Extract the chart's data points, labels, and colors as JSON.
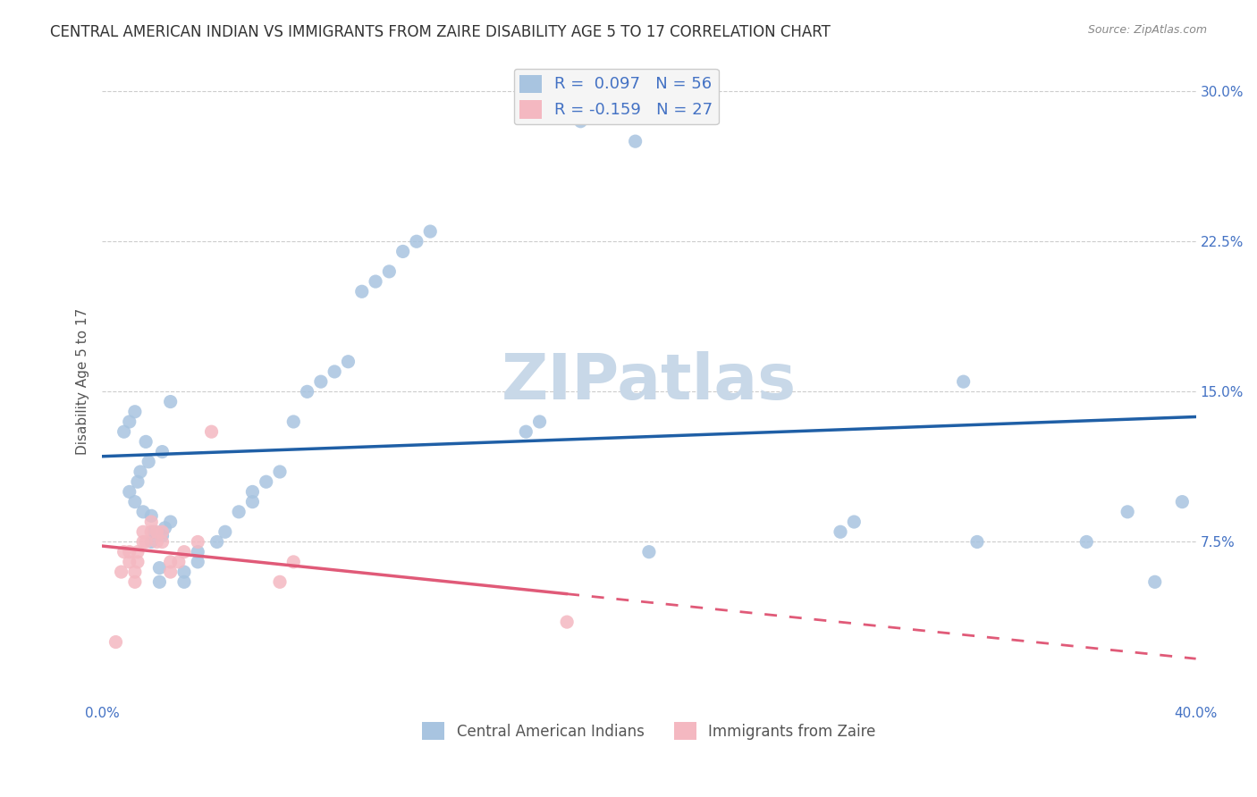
{
  "title": "CENTRAL AMERICAN INDIAN VS IMMIGRANTS FROM ZAIRE DISABILITY AGE 5 TO 17 CORRELATION CHART",
  "source": "Source: ZipAtlas.com",
  "xlabel_bottom": "",
  "ylabel": "Disability Age 5 to 17",
  "xmin": 0.0,
  "xmax": 0.4,
  "ymin": -0.005,
  "ymax": 0.315,
  "xticks": [
    0.0,
    0.1,
    0.2,
    0.3,
    0.4
  ],
  "xticklabels": [
    "0.0%",
    "",
    "",
    "",
    "40.0%"
  ],
  "yticks": [
    0.075,
    0.15,
    0.225,
    0.3
  ],
  "yticklabels": [
    "7.5%",
    "15.0%",
    "22.5%",
    "30.0%"
  ],
  "R_blue": 0.097,
  "N_blue": 56,
  "R_pink": -0.159,
  "N_pink": 27,
  "blue_color": "#a8c4e0",
  "blue_line_color": "#1f5fa6",
  "pink_color": "#f4b8c1",
  "pink_line_color": "#e05a78",
  "legend_face": "#f5f5f5",
  "watermark": "ZIPatlas",
  "blue_x": [
    0.021,
    0.021,
    0.018,
    0.022,
    0.019,
    0.023,
    0.025,
    0.018,
    0.015,
    0.012,
    0.01,
    0.013,
    0.014,
    0.017,
    0.022,
    0.016,
    0.008,
    0.01,
    0.012,
    0.025,
    0.03,
    0.03,
    0.035,
    0.035,
    0.042,
    0.045,
    0.05,
    0.055,
    0.055,
    0.06,
    0.065,
    0.07,
    0.075,
    0.08,
    0.085,
    0.09,
    0.095,
    0.1,
    0.105,
    0.11,
    0.115,
    0.12,
    0.155,
    0.16,
    0.175,
    0.18,
    0.195,
    0.2,
    0.27,
    0.275,
    0.315,
    0.32,
    0.36,
    0.375,
    0.385,
    0.395
  ],
  "blue_y": [
    0.055,
    0.062,
    0.075,
    0.078,
    0.08,
    0.082,
    0.085,
    0.088,
    0.09,
    0.095,
    0.1,
    0.105,
    0.11,
    0.115,
    0.12,
    0.125,
    0.13,
    0.135,
    0.14,
    0.145,
    0.055,
    0.06,
    0.065,
    0.07,
    0.075,
    0.08,
    0.09,
    0.095,
    0.1,
    0.105,
    0.11,
    0.135,
    0.15,
    0.155,
    0.16,
    0.165,
    0.2,
    0.205,
    0.21,
    0.22,
    0.225,
    0.23,
    0.13,
    0.135,
    0.285,
    0.29,
    0.275,
    0.07,
    0.08,
    0.085,
    0.155,
    0.075,
    0.075,
    0.09,
    0.055,
    0.095
  ],
  "pink_x": [
    0.005,
    0.007,
    0.008,
    0.01,
    0.01,
    0.012,
    0.012,
    0.013,
    0.013,
    0.015,
    0.015,
    0.016,
    0.018,
    0.018,
    0.02,
    0.02,
    0.022,
    0.022,
    0.025,
    0.025,
    0.028,
    0.03,
    0.035,
    0.04,
    0.065,
    0.07,
    0.17
  ],
  "pink_y": [
    0.025,
    0.06,
    0.07,
    0.065,
    0.07,
    0.055,
    0.06,
    0.065,
    0.07,
    0.075,
    0.08,
    0.075,
    0.08,
    0.085,
    0.075,
    0.08,
    0.075,
    0.08,
    0.06,
    0.065,
    0.065,
    0.07,
    0.075,
    0.13,
    0.055,
    0.065,
    0.035
  ],
  "grid_color": "#cccccc",
  "title_color": "#333333",
  "axis_color": "#4472c4",
  "title_fontsize": 12,
  "label_fontsize": 11,
  "tick_fontsize": 11,
  "watermark_color": "#c8d8e8",
  "watermark_fontsize": 52
}
